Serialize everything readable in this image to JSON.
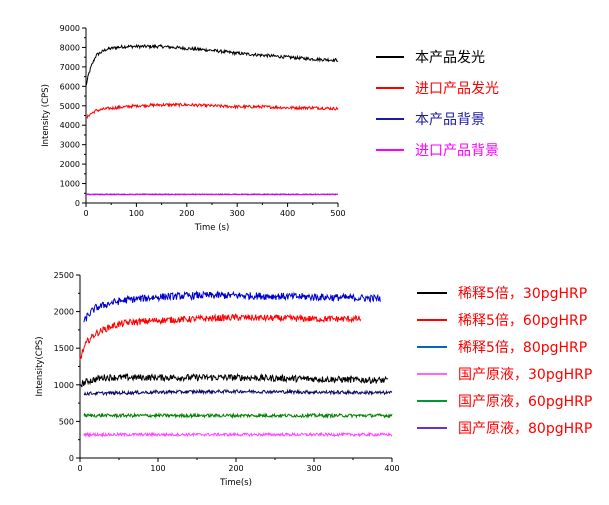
{
  "chart_data": [
    {
      "type": "line",
      "xlabel": "Time (s)",
      "ylabel": "Intensity (CPS)",
      "xlim": [
        0,
        500
      ],
      "ylim": [
        0,
        9000
      ],
      "xticks": [
        0,
        100,
        200,
        300,
        400,
        500
      ],
      "yticks": [
        0,
        1000,
        2000,
        3000,
        4000,
        5000,
        6000,
        7000,
        8000,
        9000
      ],
      "legend_position": "right",
      "series": [
        {
          "name": "本产品发光",
          "color": "#000000",
          "x": [
            0,
            5,
            10,
            20,
            40,
            60,
            80,
            100,
            150,
            200,
            250,
            300,
            350,
            400,
            450,
            500
          ],
          "y": [
            6000,
            6600,
            7000,
            7600,
            7900,
            8000,
            8050,
            8050,
            8050,
            7950,
            7850,
            7700,
            7600,
            7500,
            7400,
            7350
          ]
        },
        {
          "name": "进口产品发光",
          "color": "#ff0000",
          "x": [
            0,
            5,
            10,
            20,
            40,
            60,
            80,
            100,
            150,
            200,
            250,
            300,
            350,
            400,
            450,
            500
          ],
          "y": [
            4300,
            4500,
            4600,
            4750,
            4850,
            4900,
            4950,
            5000,
            5050,
            5050,
            5000,
            4950,
            4950,
            4900,
            4900,
            4850
          ]
        },
        {
          "name": "本产品背景",
          "color": "#1a1aa6",
          "x": [
            0,
            500
          ],
          "y": [
            450,
            450
          ]
        },
        {
          "name": "进口产品背景",
          "color": "#ff00ff",
          "x": [
            0,
            500
          ],
          "y": [
            430,
            430
          ]
        }
      ]
    },
    {
      "type": "line",
      "xlabel": "Time(s)",
      "ylabel": "Intensity(CPS)",
      "xlim": [
        0,
        400
      ],
      "ylim": [
        0,
        2500
      ],
      "xticks": [
        0,
        100,
        200,
        300,
        400
      ],
      "yticks": [
        0,
        500,
        1000,
        1500,
        2000,
        2500
      ],
      "legend_position": "right",
      "series": [
        {
          "name": "稀释5倍，30pgHRP",
          "color": "#000000",
          "x": [
            0,
            10,
            30,
            100,
            200,
            300,
            395
          ],
          "y": [
            1000,
            1050,
            1100,
            1100,
            1100,
            1080,
            1060
          ]
        },
        {
          "name": "稀释5倍，60pgHRP",
          "color": "#ff0000",
          "x": [
            0,
            5,
            10,
            20,
            40,
            60,
            100,
            200,
            300,
            360
          ],
          "y": [
            1350,
            1500,
            1600,
            1700,
            1800,
            1850,
            1880,
            1920,
            1900,
            1900
          ]
        },
        {
          "name": "稀释5倍，80pgHRP",
          "color": "#0000cc",
          "x": [
            5,
            10,
            20,
            40,
            60,
            100,
            150,
            200,
            300,
            385
          ],
          "y": [
            1850,
            1950,
            2050,
            2120,
            2160,
            2200,
            2220,
            2220,
            2200,
            2180
          ]
        },
        {
          "name": "国产原液，30pgHRP",
          "color": "#ff44ff",
          "x": [
            5,
            400
          ],
          "y": [
            320,
            320
          ]
        },
        {
          "name": "国产原液，60pgHRP",
          "color": "#008000",
          "x": [
            5,
            400
          ],
          "y": [
            580,
            580
          ]
        },
        {
          "name": "国产原液，80pgHRP",
          "color": "#0a0a66",
          "x": [
            5,
            100,
            200,
            300,
            400
          ],
          "y": [
            880,
            900,
            910,
            900,
            890
          ]
        }
      ],
      "legend_label_colors": [
        "#ff0000",
        "#ff0000",
        "#ff0000",
        "#ff0000",
        "#ff0000",
        "#ff0000"
      ],
      "legend_line_colors": [
        "#000000",
        "#ff0000",
        "#0066cc",
        "#ff66ff",
        "#009933",
        "#6633cc"
      ]
    }
  ]
}
